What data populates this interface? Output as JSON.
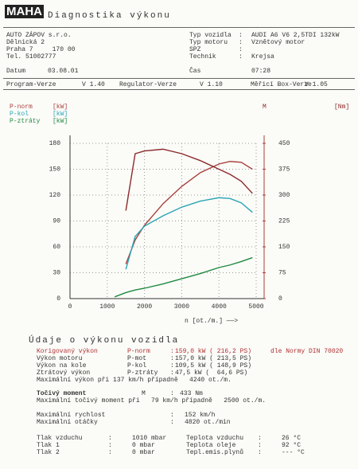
{
  "header": {
    "logo": "MAHA",
    "title": "Diagnostika výkonu"
  },
  "customer": {
    "lines": [
      "AUTO ZÁPOV s.r.o.",
      "Dělnická 2",
      "Praha 7     170 00",
      "Tel. 51002777"
    ],
    "date_label": "Datum",
    "date": "03.08.01"
  },
  "vehicle": {
    "rows": [
      [
        "Typ vozidla",
        ":",
        "AUDI A6 V6 2,5TDI 132kW"
      ],
      [
        "Typ motoru",
        ":",
        "Vznětový motor"
      ],
      [
        "SPZ",
        ":",
        ""
      ],
      [
        "Technik",
        ":",
        "Krejsa"
      ]
    ],
    "time_label": "Čas",
    "time": "07:28"
  },
  "versions": [
    [
      "Program-Verze",
      "V 1.40"
    ],
    [
      "Regulator-Verze",
      "V 1.10"
    ],
    [
      "Měřicí Box-Verze",
      "V 1.05"
    ]
  ],
  "chart_data": {
    "type": "line",
    "x_label": "n [ot./m.] ——>",
    "x": [
      1200,
      1500,
      1750,
      2000,
      2500,
      3000,
      3500,
      4000,
      4300,
      4600,
      4900
    ],
    "xlim": [
      0,
      5000
    ],
    "xticks": [
      0,
      1000,
      2000,
      3000,
      4000,
      5000
    ],
    "ylim": [
      0,
      180
    ],
    "yticks": [
      0,
      30,
      60,
      90,
      120,
      150,
      180
    ],
    "y2lim": [
      0,
      450
    ],
    "y2ticks": [
      0,
      75,
      150,
      225,
      300,
      375,
      450
    ],
    "series": [
      {
        "name": "P-norm",
        "unit": "[kW]",
        "color": "#a8403c",
        "values": [
          null,
          40,
          68,
          85,
          110,
          130,
          146,
          156,
          159,
          158,
          150
        ]
      },
      {
        "name": "P-kol",
        "unit": "[kW]",
        "color": "#2aa6b4",
        "values": [
          null,
          34,
          72,
          84,
          96,
          106,
          113,
          117,
          116,
          111,
          100
        ]
      },
      {
        "name": "P-ztráty",
        "unit": "[kW]",
        "color": "#1f8a40",
        "values": [
          2,
          7,
          10,
          12,
          17,
          23,
          29,
          36,
          39,
          43,
          47.5
        ]
      },
      {
        "name": "M",
        "unit": "[Nm]",
        "color": "#8a2a2a",
        "axis": "y2",
        "values": [
          null,
          255,
          420,
          428,
          433,
          420,
          400,
          375,
          360,
          340,
          305
        ]
      }
    ]
  },
  "results": {
    "title": "Údaje o výkonu vozidla",
    "rows": [
      [
        "Korigovaný výkon",
        "P-norm",
        ":",
        "159,0 kW ( 216,2 PS)",
        "dle Normy DIN 70020"
      ],
      [
        "Výkon motoru",
        "P-mot",
        ":",
        "157,0 kW ( 213,5 PS)",
        ""
      ],
      [
        "Výkon na kole",
        "P-kol",
        ":",
        "109,5 kW ( 148,9 PS)",
        ""
      ],
      [
        "Ztrátový výkon",
        "P-ztráty",
        ":",
        "47,5 kW (  64,6 PS)",
        ""
      ]
    ],
    "max_power": "Maximální výkon při 137 km/h případně   4240 ot./m.",
    "torque": [
      "Točivý moment",
      "M",
      ":",
      "433 Nm"
    ],
    "max_torque": "Maximální točivý moment při   79 km/h případně   2500 ot./m.",
    "speed": [
      [
        "Maximální rychlost",
        ":",
        "152 km/h"
      ],
      [
        "Maximální otáčky",
        ":",
        "4820 ot./min"
      ]
    ]
  },
  "ambient": {
    "left": [
      [
        "Tlak vzduchu",
        ":",
        "1010 mbar"
      ],
      [
        "Tlak 1",
        ":",
        "0 mbar"
      ],
      [
        "Tlak 2",
        ":",
        "0 mbar"
      ]
    ],
    "right": [
      [
        "Teplota vzduchu",
        ":",
        "26 °C"
      ],
      [
        "Teplota oleje",
        ":",
        "92 °C"
      ],
      [
        "Tepl.emis.plynů",
        ":",
        "--- °C"
      ]
    ]
  }
}
